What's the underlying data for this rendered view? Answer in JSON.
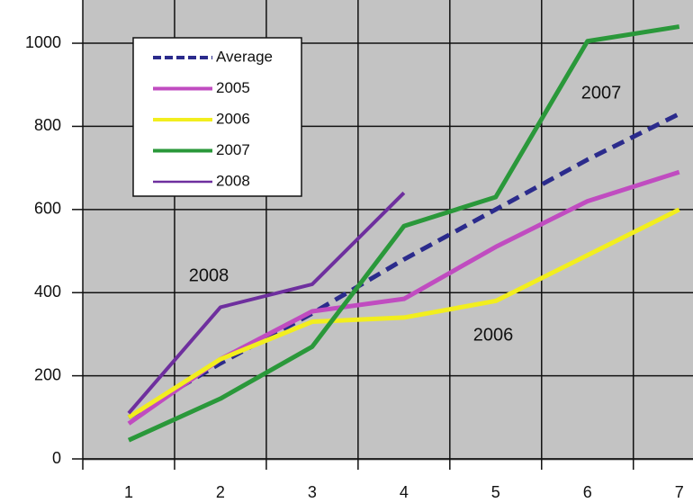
{
  "chart_data": {
    "type": "line",
    "x": [
      1,
      2,
      3,
      4,
      5,
      6,
      7
    ],
    "series": [
      {
        "name": "Average",
        "color": "#2b2b8c",
        "dashed": true,
        "values": [
          100,
          230,
          350,
          480,
          600,
          720,
          830
        ]
      },
      {
        "name": "2005",
        "color": "#c04cc0",
        "values": [
          85,
          240,
          355,
          385,
          510,
          620,
          690
        ]
      },
      {
        "name": "2006",
        "color": "#f2ee1e",
        "values": [
          100,
          240,
          330,
          340,
          380,
          490,
          600
        ]
      },
      {
        "name": "2007",
        "color": "#2a983a",
        "values": [
          45,
          145,
          270,
          560,
          630,
          1005,
          1040
        ]
      },
      {
        "name": "2008",
        "color": "#6e2f9e",
        "values": [
          110,
          365,
          420,
          640,
          null,
          null,
          null
        ]
      }
    ],
    "annotations": [
      "2008",
      "2007",
      "2006"
    ],
    "xlim": [
      0.5,
      7.15
    ],
    "xticks": [
      1,
      2,
      3,
      4,
      5,
      6,
      7
    ],
    "ylim": [
      0,
      1104
    ],
    "yticks": [
      0,
      200,
      400,
      600,
      800,
      1000
    ],
    "grid": true,
    "legend": "upper left"
  }
}
